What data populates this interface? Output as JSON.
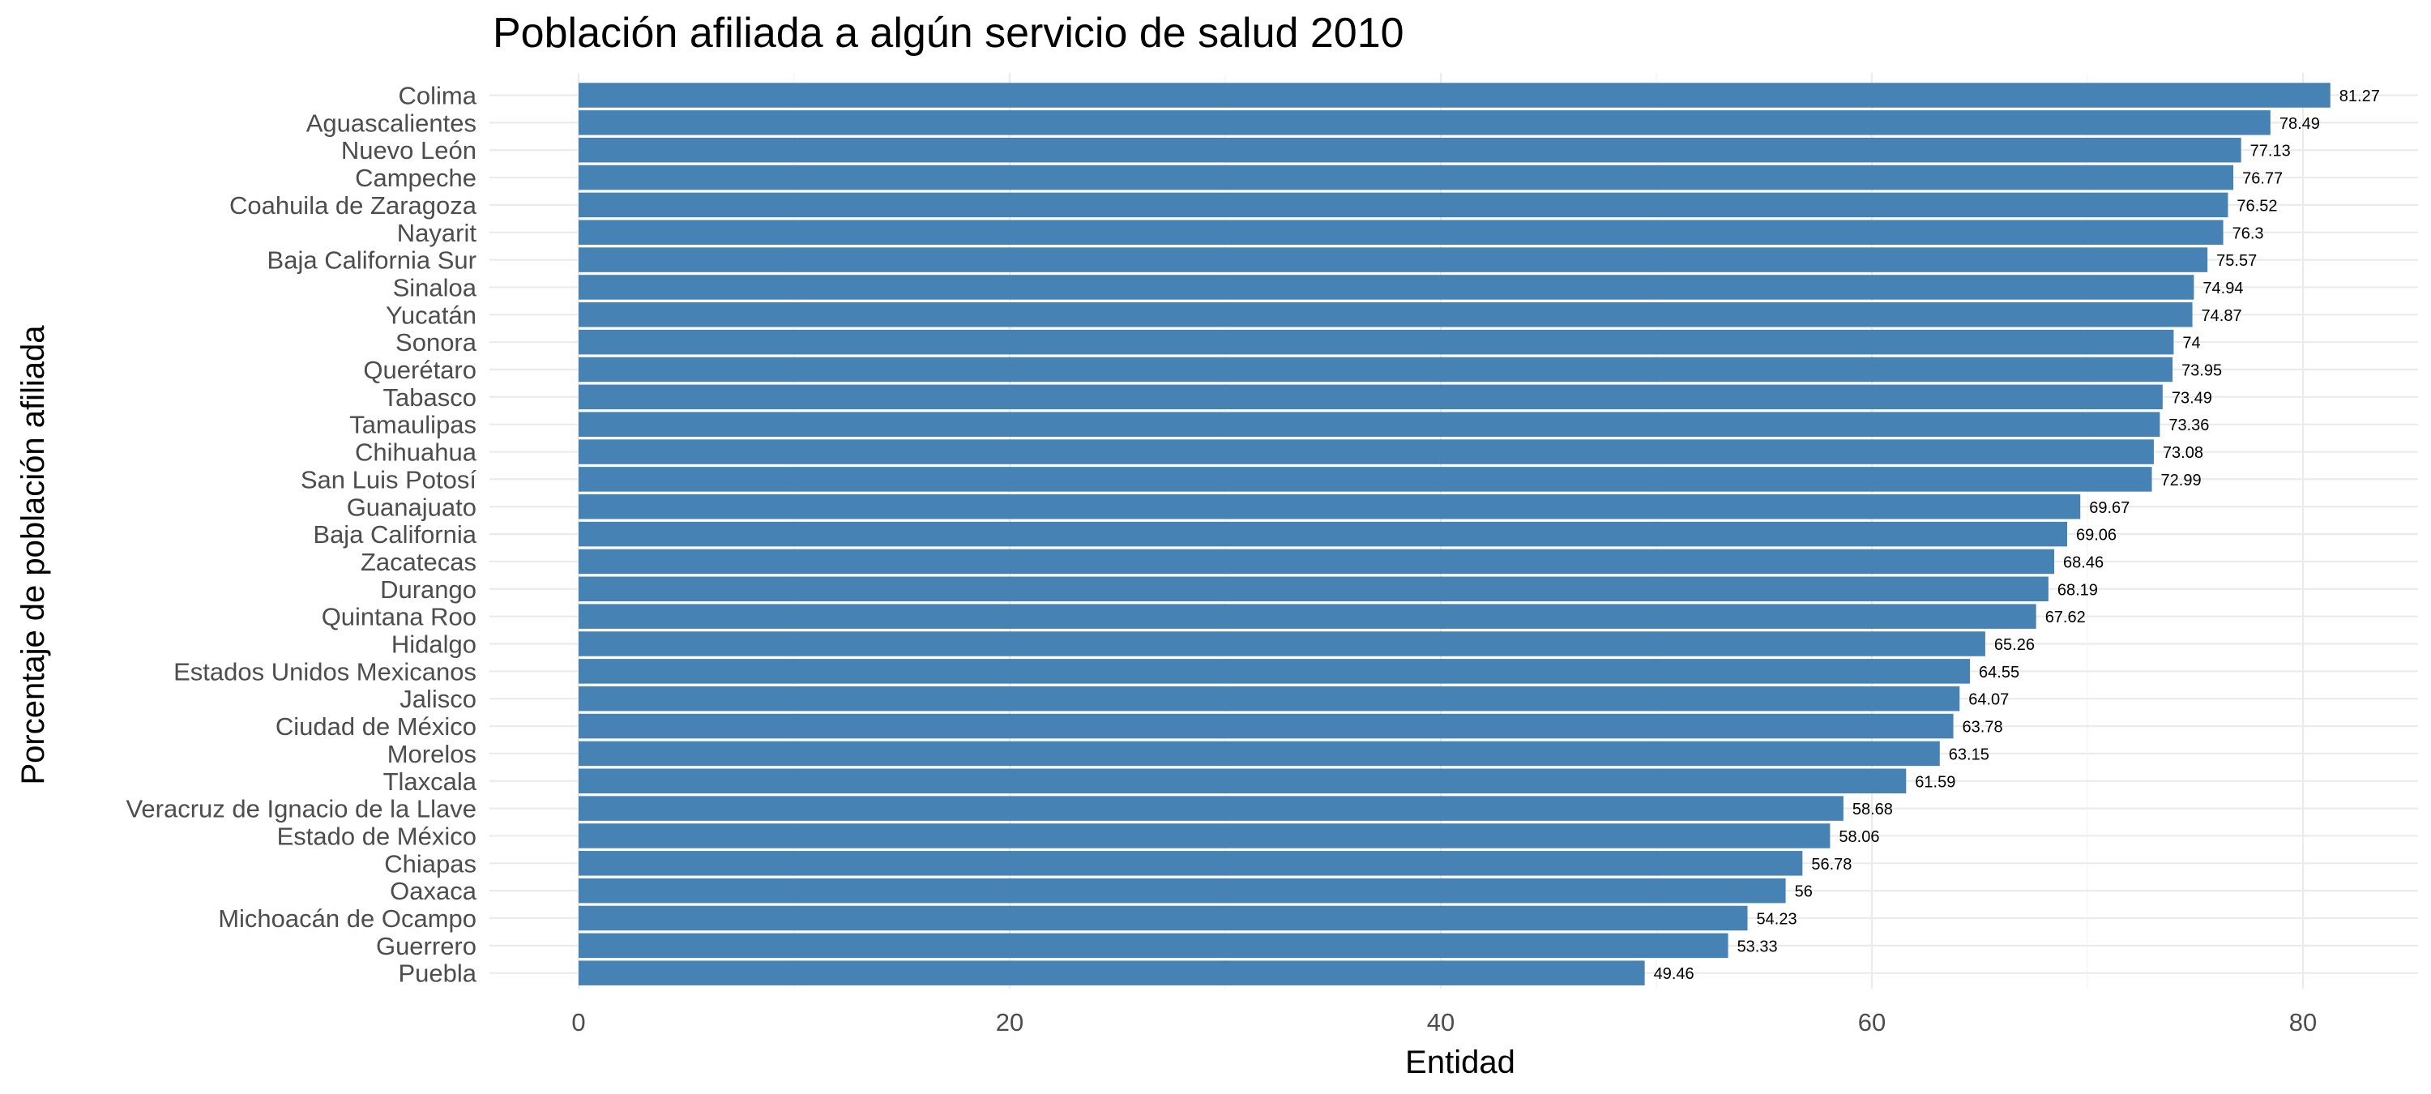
{
  "chart_data": {
    "type": "bar",
    "orientation": "horizontal",
    "title": "Población afiliada a algún servicio de salud 2010",
    "xlabel": "Entidad",
    "ylabel": "Porcentaje de población afiliada",
    "xlim": [
      0,
      85
    ],
    "xticks": [
      "0",
      "20",
      "40",
      "60",
      "80"
    ],
    "grid": true,
    "bar_color": "#4682b4",
    "categories": [
      "Colima",
      "Aguascalientes",
      "Nuevo León",
      "Campeche",
      "Coahuila de Zaragoza",
      "Nayarit",
      "Baja California Sur",
      "Sinaloa",
      "Yucatán",
      "Sonora",
      "Querétaro",
      "Tabasco",
      "Tamaulipas",
      "Chihuahua",
      "San Luis Potosí",
      "Guanajuato",
      "Baja California",
      "Zacatecas",
      "Durango",
      "Quintana Roo",
      "Hidalgo",
      "Estados Unidos Mexicanos",
      "Jalisco",
      "Ciudad de México",
      "Morelos",
      "Tlaxcala",
      "Veracruz de Ignacio de la Llave",
      "Estado de México",
      "Chiapas",
      "Oaxaca",
      "Michoacán de Ocampo",
      "Guerrero",
      "Puebla"
    ],
    "values": [
      81.27,
      78.49,
      77.13,
      76.77,
      76.52,
      76.3,
      75.57,
      74.94,
      74.87,
      74,
      73.95,
      73.49,
      73.36,
      73.08,
      72.99,
      69.67,
      69.06,
      68.46,
      68.19,
      67.62,
      65.26,
      64.55,
      64.07,
      63.78,
      63.15,
      61.59,
      58.68,
      58.06,
      56.78,
      56,
      54.23,
      53.33,
      49.46
    ],
    "data_labels": [
      "81.27",
      "78.49",
      "77.13",
      "76.77",
      "76.52",
      "76.3",
      "75.57",
      "74.94",
      "74.87",
      "74",
      "73.95",
      "73.49",
      "73.36",
      "73.08",
      "72.99",
      "69.67",
      "69.06",
      "68.46",
      "68.19",
      "67.62",
      "65.26",
      "64.55",
      "64.07",
      "63.78",
      "63.15",
      "61.59",
      "58.68",
      "58.06",
      "56.78",
      "56",
      "54.23",
      "53.33",
      "49.46"
    ]
  }
}
